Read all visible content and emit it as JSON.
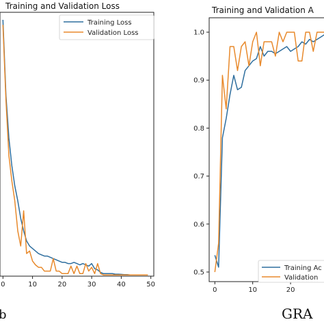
{
  "captions": {
    "left": "b",
    "right": "GRA"
  },
  "colors": {
    "training": "#2e6e9e",
    "validation": "#e8892b"
  },
  "chart_data": [
    {
      "type": "line",
      "title": "Training and Validation Loss",
      "xlabel": "",
      "ylabel": "",
      "xlim": [
        -1,
        51
      ],
      "ylim": [
        0,
        1.05
      ],
      "x_ticks": [
        0,
        10,
        20,
        30,
        40,
        50
      ],
      "x_tick_labels": [
        "0",
        "10",
        "20",
        "30",
        "40",
        "50"
      ],
      "y_ticks": [],
      "legend": {
        "placement": "top-right",
        "entries": [
          "Training Loss",
          "Validation Loss"
        ]
      },
      "grid": false,
      "series": [
        {
          "name": "Training Loss",
          "x": [
            0,
            1,
            2,
            3,
            4,
            5,
            6,
            7,
            8,
            9,
            10,
            11,
            12,
            13,
            14,
            15,
            16,
            17,
            18,
            19,
            20,
            21,
            22,
            23,
            24,
            25,
            26,
            27,
            28,
            29,
            30,
            31,
            32,
            33,
            34,
            35,
            36,
            37,
            38,
            39,
            40,
            41,
            42,
            43,
            44,
            45,
            46,
            47,
            48,
            49
          ],
          "y": [
            1.02,
            0.72,
            0.55,
            0.44,
            0.36,
            0.3,
            0.23,
            0.18,
            0.14,
            0.12,
            0.11,
            0.1,
            0.09,
            0.085,
            0.08,
            0.08,
            0.075,
            0.07,
            0.065,
            0.06,
            0.055,
            0.055,
            0.05,
            0.05,
            0.055,
            0.05,
            0.045,
            0.05,
            0.045,
            0.04,
            0.05,
            0.03,
            0.025,
            0.015,
            0.01,
            0.01,
            0.01,
            0.01,
            0.008,
            0.008,
            0.007,
            0.006,
            0.006,
            0.005,
            0.005,
            0.005,
            0.005,
            0.005,
            0.005,
            0.005
          ]
        },
        {
          "name": "Validation Loss",
          "x": [
            0,
            1,
            2,
            3,
            4,
            5,
            6,
            7,
            8,
            9,
            10,
            11,
            12,
            13,
            14,
            15,
            16,
            17,
            18,
            19,
            20,
            21,
            22,
            23,
            24,
            25,
            26,
            27,
            28,
            29,
            30,
            31,
            32,
            33,
            34,
            35,
            36,
            37,
            38,
            39,
            40,
            41,
            42,
            43,
            44,
            45,
            46,
            47,
            48,
            49
          ],
          "y": [
            1.0,
            0.7,
            0.48,
            0.38,
            0.3,
            0.18,
            0.12,
            0.26,
            0.09,
            0.1,
            0.06,
            0.045,
            0.035,
            0.035,
            0.02,
            0.02,
            0.02,
            0.07,
            0.02,
            0.02,
            0.01,
            0.01,
            0.01,
            0.04,
            0.01,
            0.04,
            0.01,
            0.01,
            0.05,
            0.02,
            0.035,
            0.01,
            0.05,
            0.01,
            0.005,
            0.005,
            0.005,
            0.005,
            0.005,
            0.005,
            0.005,
            0.005,
            0.005,
            0.005,
            0.005,
            0.005,
            0.005,
            0.005,
            0.005,
            0.005
          ]
        }
      ]
    },
    {
      "type": "line",
      "title": "Training and Validation A",
      "xlabel": "",
      "ylabel": "",
      "xlim": [
        -1.5,
        31
      ],
      "ylim": [
        0.48,
        1.03
      ],
      "x_ticks": [
        0,
        10,
        20
      ],
      "x_tick_labels": [
        "0",
        "10",
        "20"
      ],
      "y_ticks": [
        0.5,
        0.6,
        0.7,
        0.8,
        0.9,
        1.0
      ],
      "y_tick_labels": [
        "0.5",
        "0.6",
        "0.7",
        "0.8",
        "0.9",
        "1.0"
      ],
      "legend": {
        "placement": "bottom-right",
        "entries": [
          "Training Ac",
          "Validation"
        ]
      },
      "grid": false,
      "series": [
        {
          "name": "Training Ac",
          "x": [
            0,
            1,
            2,
            3,
            4,
            5,
            6,
            7,
            8,
            9,
            10,
            11,
            12,
            13,
            14,
            15,
            16,
            17,
            18,
            19,
            20,
            21,
            22,
            23,
            24,
            25,
            26,
            27,
            28,
            29,
            30
          ],
          "y": [
            0.535,
            0.51,
            0.78,
            0.82,
            0.87,
            0.91,
            0.88,
            0.885,
            0.92,
            0.93,
            0.94,
            0.945,
            0.97,
            0.95,
            0.96,
            0.96,
            0.955,
            0.96,
            0.965,
            0.97,
            0.96,
            0.965,
            0.97,
            0.98,
            0.975,
            0.985,
            0.98,
            0.985,
            0.99,
            0.995,
            0.995
          ]
        },
        {
          "name": "Validation",
          "x": [
            0,
            1,
            2,
            3,
            4,
            5,
            6,
            7,
            8,
            9,
            10,
            11,
            12,
            13,
            14,
            15,
            16,
            17,
            18,
            19,
            20,
            21,
            22,
            23,
            24,
            25,
            26,
            27,
            28,
            29,
            30
          ],
          "y": [
            0.5,
            0.56,
            0.91,
            0.84,
            0.97,
            0.97,
            0.92,
            0.97,
            0.98,
            0.93,
            0.98,
            1.0,
            0.93,
            0.98,
            0.98,
            0.98,
            0.95,
            1.0,
            0.98,
            1.0,
            1.0,
            1.0,
            0.94,
            0.94,
            1.0,
            1.0,
            0.96,
            1.0,
            1.0,
            1.0,
            1.0
          ]
        }
      ]
    }
  ]
}
